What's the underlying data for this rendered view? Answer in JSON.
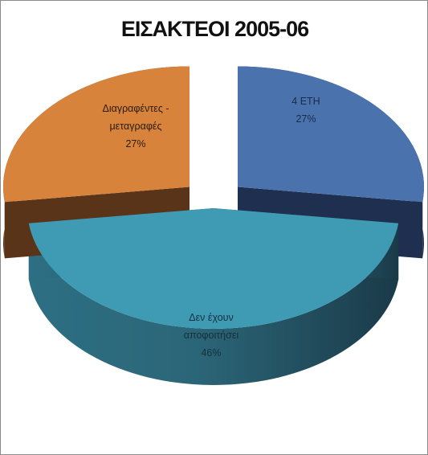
{
  "chart_data": {
    "type": "pie",
    "title": "ΕΙΣΑΚΤΕΟΙ 2005-06",
    "three_d": true,
    "exploded": true,
    "slices": [
      {
        "label_lines": [
          "4 ΕΤΗ"
        ],
        "value": 27,
        "value_label": "27%",
        "color": "#4a72ac"
      },
      {
        "label_lines": [
          "Δεν έχουν",
          "αποφοιτήσει"
        ],
        "value": 46,
        "value_label": "46%",
        "color": "#3e9bb3"
      },
      {
        "label_lines": [
          "Διαγραφέντες -",
          "μεταγραφές"
        ],
        "value": 27,
        "value_label": "27%",
        "color": "#d8833b"
      }
    ]
  }
}
